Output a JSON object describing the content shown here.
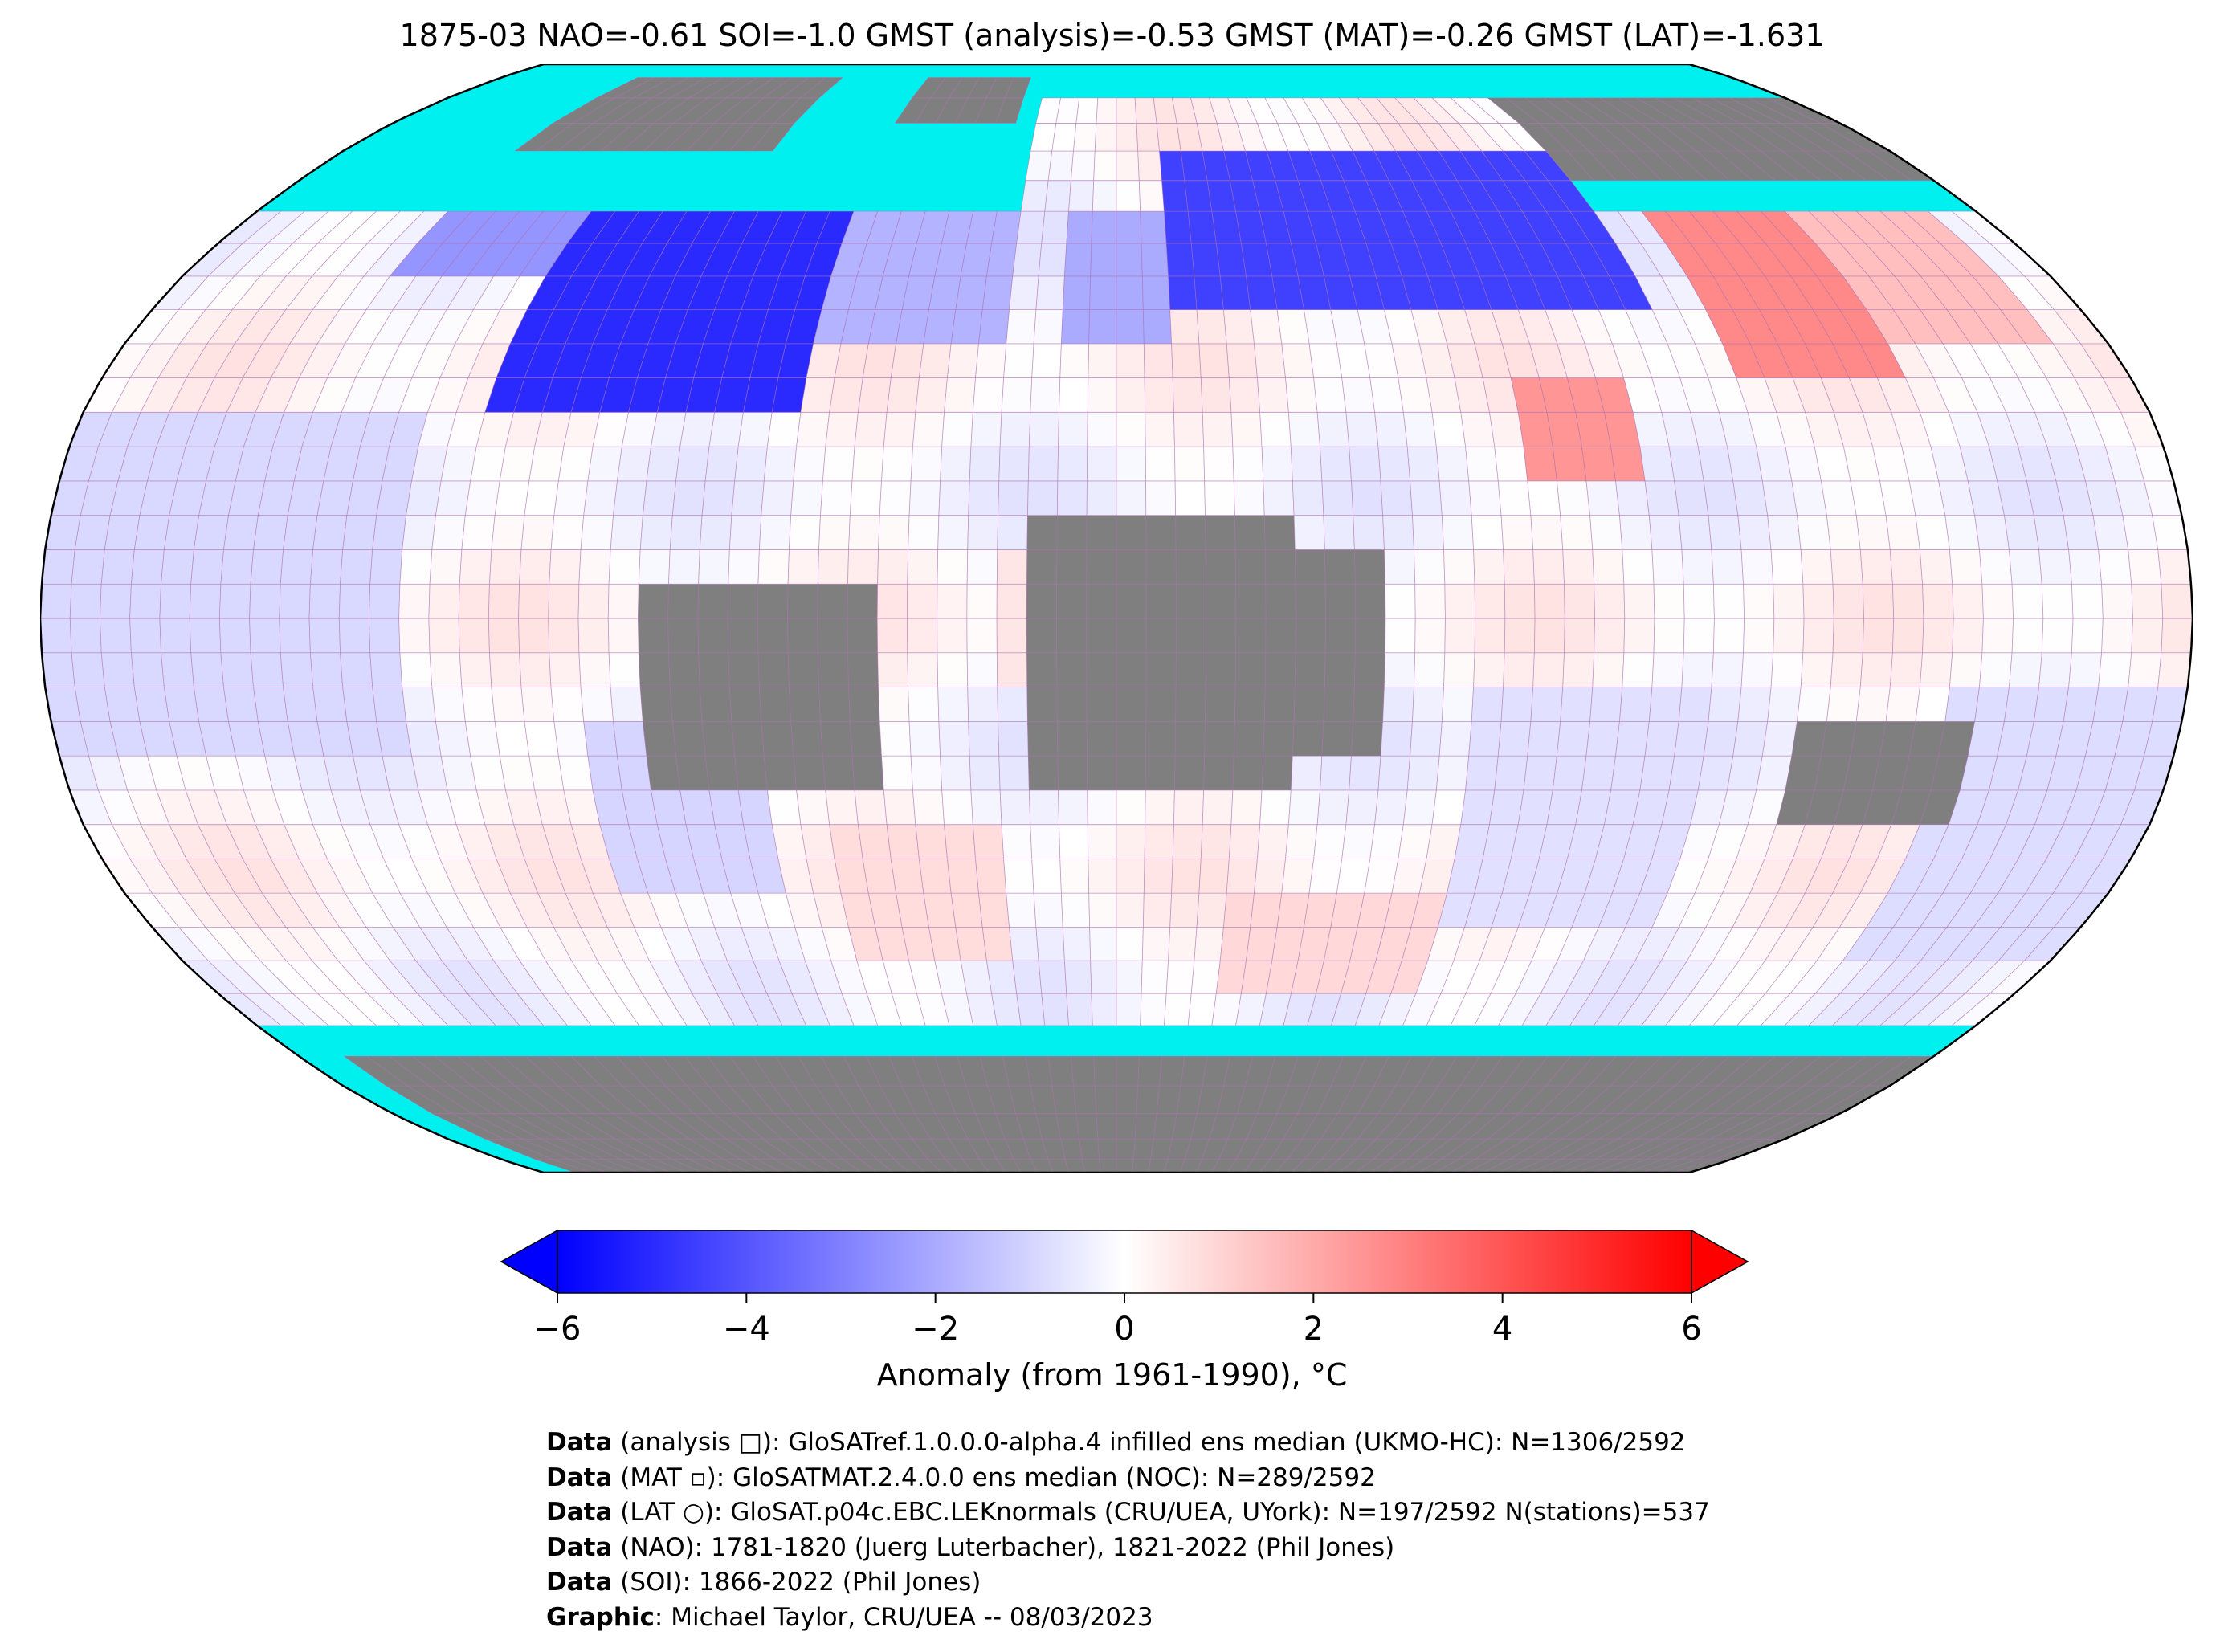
{
  "title": "1875-03 NAO=-0.61 SOI=-1.0 GMST (analysis)=-0.53 GMST (MAT)=-0.26 GMST (LAT)=-1.631",
  "colors": {
    "ocean_nodata": "#00f0f0",
    "land_nodata": "#7f7f7f",
    "grid": "#b070b0",
    "cold_max": "#0000ff",
    "neutral": "#ffffff",
    "warm_max": "#ff0000"
  },
  "colorbar": {
    "label": "Anomaly (from 1961-1990), °C",
    "ticks": [
      "−6",
      "−4",
      "−2",
      "0",
      "2",
      "4",
      "6"
    ],
    "tick_values": [
      -6,
      -4,
      -2,
      0,
      2,
      4,
      6
    ],
    "range": [
      -6,
      6
    ],
    "extend": "both"
  },
  "credits": [
    {
      "bold": "Data",
      "text": " (analysis □): GloSATref.1.0.0.0-alpha.4 infilled ens median (UKMO-HC): N=1306/2592"
    },
    {
      "bold": "Data",
      "text": " (MAT ▫): GloSATMAT.2.4.0.0 ens median (NOC): N=289/2592"
    },
    {
      "bold": "Data",
      "text": " (LAT ○): GloSAT.p04c.EBC.LEKnormals (CRU/UEA, UYork): N=197/2592 N(stations)=537"
    },
    {
      "bold": "Data",
      "text": " (NAO): 1781-1820 (Juerg Luterbacher), 1821-2022 (Phil Jones)"
    },
    {
      "bold": "Data",
      "text": " (SOI): 1866-2022 (Phil Jones)"
    },
    {
      "bold": "Graphic",
      "text": ": Michael Taylor, CRU/UEA -- 08/03/2023"
    }
  ],
  "map": {
    "projection": "robinson",
    "grid_resolution_deg": 5,
    "anomaly_regions": [
      {
        "lon": [
          -110,
          -55
        ],
        "lat": [
          30,
          60
        ],
        "value": -5.0
      },
      {
        "lon": [
          -140,
          -110
        ],
        "lat": [
          50,
          70
        ],
        "value": -2.5
      },
      {
        "lon": [
          -55,
          -20
        ],
        "lat": [
          40,
          65
        ],
        "value": -1.8
      },
      {
        "lon": [
          10,
          100
        ],
        "lat": [
          45,
          70
        ],
        "value": -4.5
      },
      {
        "lon": [
          -10,
          10
        ],
        "lat": [
          40,
          60
        ],
        "value": -2.0
      },
      {
        "lon": [
          110,
          140
        ],
        "lat": [
          35,
          60
        ],
        "value": 2.8
      },
      {
        "lon": [
          140,
          170
        ],
        "lat": [
          40,
          65
        ],
        "value": 1.5
      },
      {
        "lon": [
          70,
          90
        ],
        "lat": [
          20,
          35
        ],
        "value": 2.5
      },
      {
        "lon": [
          -20,
          0
        ],
        "lat": [
          -10,
          10
        ],
        "value": 0.6
      },
      {
        "lon": [
          -50,
          -20
        ],
        "lat": [
          -50,
          -30
        ],
        "value": 0.8
      },
      {
        "lon": [
          20,
          60
        ],
        "lat": [
          -55,
          -40
        ],
        "value": 0.9
      },
      {
        "lon": [
          -180,
          -120
        ],
        "lat": [
          -20,
          30
        ],
        "value": -0.9
      },
      {
        "lon": [
          60,
          100
        ],
        "lat": [
          -45,
          -10
        ],
        "value": -0.7
      },
      {
        "lon": [
          140,
          180
        ],
        "lat": [
          -50,
          -10
        ],
        "value": -0.8
      },
      {
        "lon": [
          -90,
          -60
        ],
        "lat": [
          -40,
          -15
        ],
        "value": -1.0
      }
    ],
    "land_nodata_boxes": [
      {
        "lon": [
          -80,
          -40
        ],
        "lat": [
          -25,
          5
        ]
      },
      {
        "lon": [
          -15,
          30
        ],
        "lat": [
          -25,
          15
        ]
      },
      {
        "lon": [
          20,
          45
        ],
        "lat": [
          -20,
          10
        ]
      },
      {
        "lon": [
          115,
          145
        ],
        "lat": [
          -30,
          -15
        ]
      },
      {
        "lon": [
          -170,
          180
        ],
        "lat": [
          -90,
          -65
        ]
      },
      {
        "lon": [
          -55,
          -25
        ],
        "lat": [
          75,
          85
        ]
      },
      {
        "lon": [
          -140,
          -80
        ],
        "lat": [
          70,
          85
        ]
      },
      {
        "lon": [
          100,
          180
        ],
        "lat": [
          65,
          80
        ]
      }
    ]
  }
}
